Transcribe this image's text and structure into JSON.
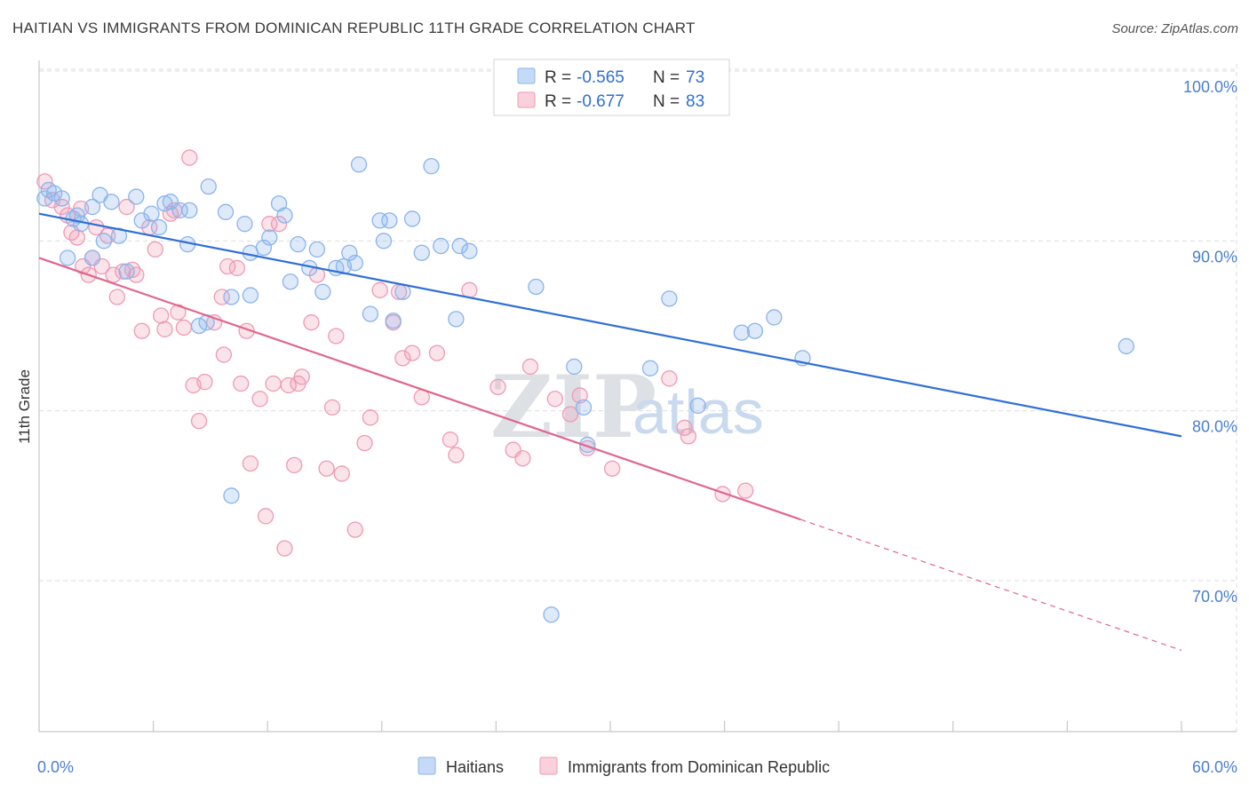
{
  "header": {
    "title": "HAITIAN VS IMMIGRANTS FROM DOMINICAN REPUBLIC 11TH GRADE CORRELATION CHART",
    "source": "Source: ZipAtlas.com"
  },
  "watermark": {
    "zip": "ZIP",
    "atlas": "atlas"
  },
  "legend_top": [
    {
      "r_label": "R = ",
      "r_value": "-0.565",
      "n_label": "N = ",
      "n_value": "73",
      "color": "#8ab4ec",
      "fill": "#c5daf6"
    },
    {
      "r_label": "R = ",
      "r_value": "-0.677",
      "n_label": "N = ",
      "n_value": "83",
      "color": "#ef9ab5",
      "fill": "#f9d0dc"
    }
  ],
  "legend_bottom": [
    {
      "label": "Haitians",
      "color": "#8ab4ec",
      "fill": "#c5daf6"
    },
    {
      "label": "Immigrants from Dominican Republic",
      "color": "#ef9ab5",
      "fill": "#f9d0dc"
    }
  ],
  "colors": {
    "blue_line": "#2f6fd4",
    "pink_line": "#e0668e",
    "blue_point": "#8ab4ec",
    "pink_point": "#ef9ab5",
    "grid": "#dedede"
  },
  "chart_data": {
    "type": "scatter",
    "title": "HAITIAN VS IMMIGRANTS FROM DOMINICAN REPUBLIC 11TH GRADE CORRELATION CHART",
    "xlabel": "",
    "ylabel": "11th Grade",
    "xlim": [
      0,
      60
    ],
    "ylim": [
      59,
      102
    ],
    "x_tick_labels": [
      "0.0%",
      "60.0%"
    ],
    "y_ticks": [
      70,
      80,
      90,
      100
    ],
    "y_tick_labels": [
      "70.0%",
      "80.0%",
      "90.0%",
      "100.0%"
    ],
    "grid": true,
    "legend_position": "top-center",
    "series": [
      {
        "name": "Haitians",
        "R": -0.565,
        "N": 73,
        "trend": {
          "x": [
            0,
            60
          ],
          "y": [
            91.6,
            78.5
          ]
        },
        "points": [
          [
            0.3,
            92.5
          ],
          [
            0.5,
            93.0
          ],
          [
            0.8,
            92.8
          ],
          [
            1.2,
            92.5
          ],
          [
            1.8,
            91.3
          ],
          [
            1.5,
            89.0
          ],
          [
            2.2,
            91.0
          ],
          [
            2.8,
            92.0
          ],
          [
            3.2,
            92.7
          ],
          [
            3.8,
            92.3
          ],
          [
            4.2,
            90.3
          ],
          [
            3.4,
            90.0
          ],
          [
            4.6,
            88.2
          ],
          [
            5.1,
            92.6
          ],
          [
            5.4,
            91.2
          ],
          [
            5.9,
            91.6
          ],
          [
            6.3,
            90.8
          ],
          [
            6.6,
            92.2
          ],
          [
            6.9,
            92.3
          ],
          [
            7.4,
            91.8
          ],
          [
            7.9,
            91.8
          ],
          [
            7.8,
            89.8
          ],
          [
            8.4,
            85.0
          ],
          [
            8.9,
            93.2
          ],
          [
            8.8,
            85.2
          ],
          [
            9.8,
            91.7
          ],
          [
            10.1,
            86.7
          ],
          [
            10.8,
            91.0
          ],
          [
            11.1,
            89.3
          ],
          [
            11.1,
            86.8
          ],
          [
            11.8,
            89.6
          ],
          [
            12.1,
            90.2
          ],
          [
            12.6,
            92.2
          ],
          [
            12.9,
            91.5
          ],
          [
            13.2,
            87.6
          ],
          [
            13.6,
            89.8
          ],
          [
            14.2,
            88.4
          ],
          [
            14.6,
            89.5
          ],
          [
            14.9,
            87.0
          ],
          [
            15.6,
            88.4
          ],
          [
            16.0,
            88.5
          ],
          [
            16.3,
            89.3
          ],
          [
            16.6,
            88.7
          ],
          [
            16.8,
            94.5
          ],
          [
            17.4,
            85.7
          ],
          [
            17.9,
            91.2
          ],
          [
            18.1,
            90.0
          ],
          [
            18.4,
            91.2
          ],
          [
            18.6,
            85.3
          ],
          [
            19.1,
            87.0
          ],
          [
            19.6,
            91.3
          ],
          [
            20.1,
            89.3
          ],
          [
            20.6,
            94.4
          ],
          [
            21.1,
            89.7
          ],
          [
            21.9,
            85.4
          ],
          [
            22.1,
            89.7
          ],
          [
            22.6,
            89.4
          ],
          [
            26.1,
            87.3
          ],
          [
            28.1,
            82.6
          ],
          [
            28.6,
            80.2
          ],
          [
            28.8,
            78.0
          ],
          [
            32.1,
            82.5
          ],
          [
            33.1,
            86.6
          ],
          [
            34.6,
            80.3
          ],
          [
            36.9,
            84.6
          ],
          [
            37.6,
            84.7
          ],
          [
            38.6,
            85.5
          ],
          [
            40.1,
            83.1
          ],
          [
            57.1,
            83.8
          ],
          [
            10.1,
            75.0
          ],
          [
            26.9,
            68.0
          ],
          [
            2.8,
            89.0
          ],
          [
            2.0,
            91.5
          ]
        ]
      },
      {
        "name": "Immigrants from Dominican Republic",
        "R": -0.677,
        "N": 83,
        "trend": {
          "x": [
            0,
            40
          ],
          "y": [
            89.0,
            73.6
          ]
        },
        "trend_dashed": {
          "x": [
            40,
            60
          ],
          "y": [
            73.6,
            65.9
          ]
        },
        "points": [
          [
            0.3,
            93.5
          ],
          [
            0.7,
            92.4
          ],
          [
            1.2,
            92.0
          ],
          [
            1.5,
            91.5
          ],
          [
            1.7,
            90.5
          ],
          [
            2.0,
            90.2
          ],
          [
            2.3,
            88.5
          ],
          [
            2.6,
            88.0
          ],
          [
            2.8,
            89.0
          ],
          [
            3.3,
            88.5
          ],
          [
            3.6,
            90.3
          ],
          [
            3.9,
            88.0
          ],
          [
            4.1,
            86.7
          ],
          [
            4.4,
            88.2
          ],
          [
            4.9,
            88.3
          ],
          [
            5.1,
            88.0
          ],
          [
            5.4,
            84.7
          ],
          [
            5.8,
            90.8
          ],
          [
            6.1,
            89.5
          ],
          [
            6.4,
            85.6
          ],
          [
            6.6,
            84.8
          ],
          [
            6.9,
            91.6
          ],
          [
            7.3,
            85.8
          ],
          [
            7.6,
            84.9
          ],
          [
            7.9,
            94.9
          ],
          [
            8.1,
            81.5
          ],
          [
            8.4,
            79.4
          ],
          [
            8.7,
            81.7
          ],
          [
            9.2,
            85.2
          ],
          [
            9.6,
            86.7
          ],
          [
            9.9,
            88.5
          ],
          [
            9.7,
            83.3
          ],
          [
            10.4,
            88.4
          ],
          [
            10.6,
            81.6
          ],
          [
            10.9,
            84.7
          ],
          [
            11.1,
            76.9
          ],
          [
            11.6,
            80.7
          ],
          [
            11.9,
            73.8
          ],
          [
            12.3,
            81.6
          ],
          [
            12.6,
            91.0
          ],
          [
            12.9,
            71.9
          ],
          [
            13.1,
            81.5
          ],
          [
            13.4,
            76.8
          ],
          [
            13.6,
            81.6
          ],
          [
            13.8,
            82.0
          ],
          [
            14.3,
            85.2
          ],
          [
            14.6,
            88.0
          ],
          [
            15.1,
            76.6
          ],
          [
            15.4,
            80.2
          ],
          [
            15.6,
            84.4
          ],
          [
            15.9,
            76.3
          ],
          [
            16.6,
            73.0
          ],
          [
            17.1,
            78.1
          ],
          [
            17.4,
            79.6
          ],
          [
            17.9,
            87.1
          ],
          [
            18.6,
            85.2
          ],
          [
            18.9,
            87.0
          ],
          [
            19.1,
            83.1
          ],
          [
            19.6,
            83.4
          ],
          [
            20.1,
            80.8
          ],
          [
            20.9,
            83.4
          ],
          [
            21.6,
            78.3
          ],
          [
            21.9,
            77.4
          ],
          [
            22.6,
            87.1
          ],
          [
            24.1,
            81.4
          ],
          [
            24.9,
            77.7
          ],
          [
            25.4,
            77.2
          ],
          [
            25.8,
            82.6
          ],
          [
            27.1,
            80.7
          ],
          [
            27.9,
            79.8
          ],
          [
            28.4,
            80.9
          ],
          [
            28.8,
            77.8
          ],
          [
            30.1,
            76.6
          ],
          [
            33.1,
            81.9
          ],
          [
            33.9,
            79.0
          ],
          [
            34.1,
            78.5
          ],
          [
            35.9,
            75.1
          ],
          [
            37.1,
            75.3
          ],
          [
            12.1,
            91.0
          ],
          [
            3.0,
            90.8
          ],
          [
            7.1,
            91.8
          ],
          [
            4.6,
            92.0
          ],
          [
            2.2,
            91.9
          ]
        ]
      }
    ]
  }
}
